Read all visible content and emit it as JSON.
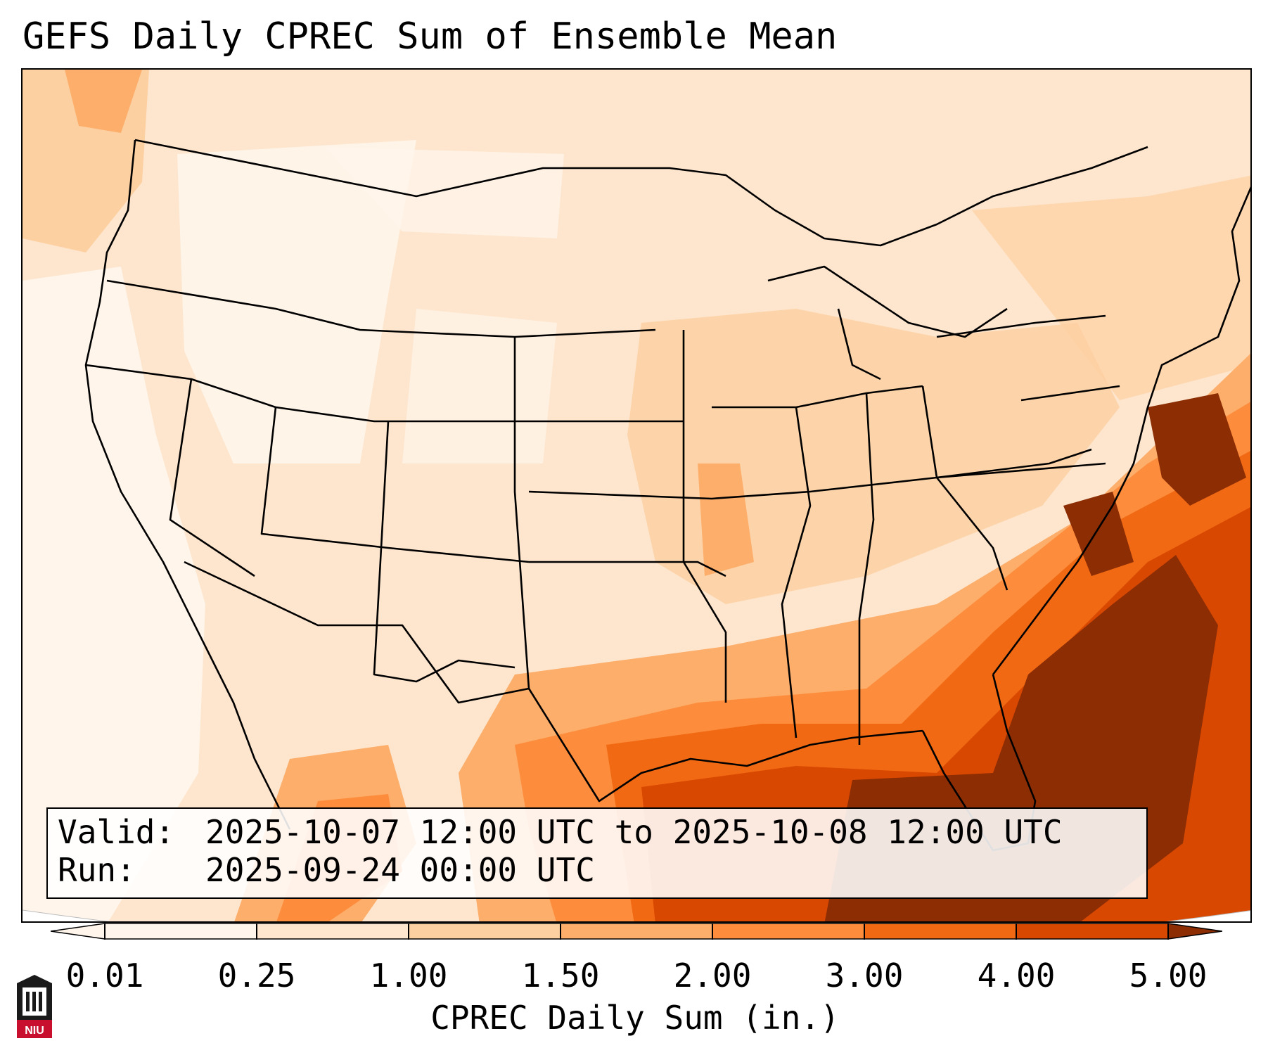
{
  "title": "GEFS Daily CPREC Sum of Ensemble Mean",
  "info": {
    "valid_label": "Valid:",
    "valid_value": "2025-10-07 12:00 UTC to 2025-10-08 12:00 UTC",
    "run_label": "Run:",
    "run_value": "2025-09-24 00:00 UTC"
  },
  "colorbar": {
    "label": "CPREC Daily Sum (in.)",
    "ticks": [
      "0.01",
      "0.25",
      "1.00",
      "1.50",
      "2.00",
      "3.00",
      "4.00",
      "5.00"
    ],
    "colors": [
      "#fff5eb",
      "#fee6ce",
      "#fdd0a2",
      "#fdae6b",
      "#fd8d3c",
      "#f16913",
      "#d94801",
      "#8c2d04"
    ],
    "extend": "both"
  },
  "logo": {
    "text": "NIU",
    "icon": "niu-logo-icon"
  }
}
